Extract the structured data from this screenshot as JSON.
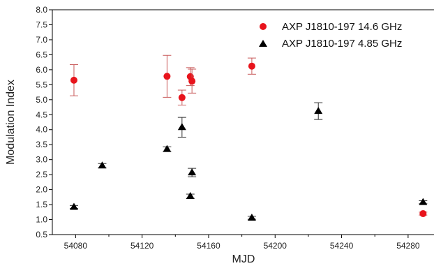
{
  "chart_data": {
    "type": "scatter",
    "xlabel": "MJD",
    "ylabel": "Modulation Index",
    "xlim": [
      54066,
      54296
    ],
    "ylim": [
      0.5,
      8.0
    ],
    "x_ticks": [
      54080,
      54120,
      54160,
      54200,
      54240,
      54280
    ],
    "y_ticks": [
      0.5,
      1.0,
      1.5,
      2.0,
      2.5,
      3.0,
      3.5,
      4.0,
      4.5,
      5.0,
      5.5,
      6.0,
      6.5,
      7.0,
      7.5,
      8.0
    ],
    "grid": false,
    "legend_position": "top-right",
    "series": [
      {
        "name": "AXP J1810-197 14.6 GHz",
        "marker": "circle",
        "color": "#e8141c",
        "error_color": "#c85a5a",
        "points": [
          {
            "x": 54079,
            "y": 5.65,
            "err": 0.52
          },
          {
            "x": 54135,
            "y": 5.78,
            "err": 0.7
          },
          {
            "x": 54144,
            "y": 5.07,
            "err": 0.25
          },
          {
            "x": 54149,
            "y": 5.77,
            "err": 0.3
          },
          {
            "x": 54150,
            "y": 5.62,
            "err": 0.4
          },
          {
            "x": 54186,
            "y": 6.12,
            "err": 0.27
          },
          {
            "x": 54289,
            "y": 1.2,
            "err": 0.05
          }
        ]
      },
      {
        "name": "AXP J1810-197 4.85 GHz",
        "marker": "triangle",
        "color": "#000000",
        "error_color": "#333333",
        "points": [
          {
            "x": 54079,
            "y": 1.42,
            "err": 0.05
          },
          {
            "x": 54096,
            "y": 2.8,
            "err": 0.07
          },
          {
            "x": 54135,
            "y": 3.35,
            "err": 0.08
          },
          {
            "x": 54144,
            "y": 4.08,
            "err": 0.33
          },
          {
            "x": 54149,
            "y": 1.78,
            "err": 0.07
          },
          {
            "x": 54150,
            "y": 2.57,
            "err": 0.14
          },
          {
            "x": 54186,
            "y": 1.06,
            "err": 0.05
          },
          {
            "x": 54226,
            "y": 4.62,
            "err": 0.28
          },
          {
            "x": 54289,
            "y": 1.58,
            "err": 0.05
          }
        ]
      }
    ]
  }
}
